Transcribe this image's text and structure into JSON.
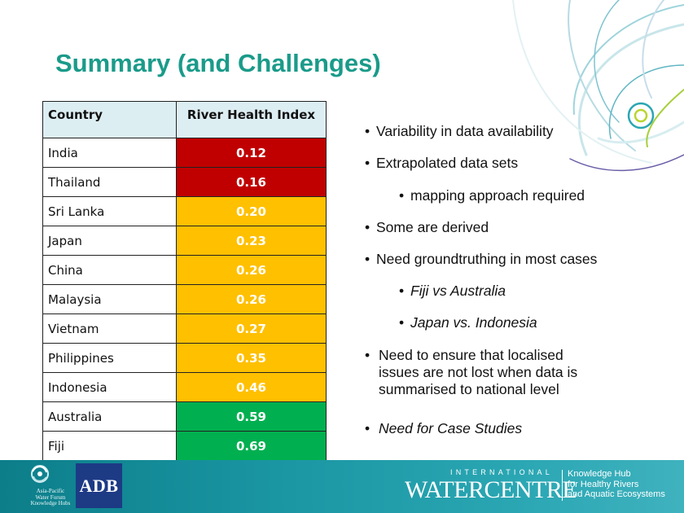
{
  "slide": {
    "title": "Summary (and Challenges)"
  },
  "table": {
    "headers": [
      "Country",
      "River Health Index"
    ],
    "rows": [
      {
        "country": "India",
        "value": "0.12",
        "color": "#c00000"
      },
      {
        "country": "Thailand",
        "value": "0.16",
        "color": "#c00000"
      },
      {
        "country": "Sri Lanka",
        "value": "0.20",
        "color": "#ffc000"
      },
      {
        "country": "Japan",
        "value": "0.23",
        "color": "#ffc000"
      },
      {
        "country": "China",
        "value": "0.26",
        "color": "#ffc000"
      },
      {
        "country": "Malaysia",
        "value": "0.26",
        "color": "#ffc000"
      },
      {
        "country": "Vietnam",
        "value": "0.27",
        "color": "#ffc000"
      },
      {
        "country": "Philippines",
        "value": "0.35",
        "color": "#ffc000"
      },
      {
        "country": "Indonesia",
        "value": "0.46",
        "color": "#ffc000"
      },
      {
        "country": "Australia",
        "value": "0.59",
        "color": "#00b050"
      },
      {
        "country": "Fiji",
        "value": "0.69",
        "color": "#00b050"
      }
    ]
  },
  "bullets": {
    "b1": "Variability in data availability",
    "b2": "Extrapolated data sets",
    "b2_sub": "mapping approach required",
    "b3": "Some are derived",
    "b4": "Need groundtruthing in most cases",
    "b4_sub1": "Fiji vs Australia",
    "b4_sub2": "Japan vs. Indonesia",
    "b5_line1": "Need to ensure that localised",
    "b5_line2": "issues are not lost when data is",
    "b5_line3": "summarised to national level",
    "b6": "Need for Case Studies",
    "marker": "•"
  },
  "footer": {
    "apwf_line1": "Asia-Pacific",
    "apwf_line2": "Water Forum",
    "apwf_line3": "Knowledge Hubs",
    "adb": "ADB",
    "iwc_intl": "INTERNATIONAL",
    "iwc_name": "WATERCENTRE",
    "kh_line1": "Knowledge Hub",
    "kh_line2": "for Healthy Rivers",
    "kh_line3": "and Aquatic Ecosystems"
  },
  "colors": {
    "title": "#1a9b8a",
    "header_bg": "#ddeef3",
    "footer": "#1a95a2"
  }
}
